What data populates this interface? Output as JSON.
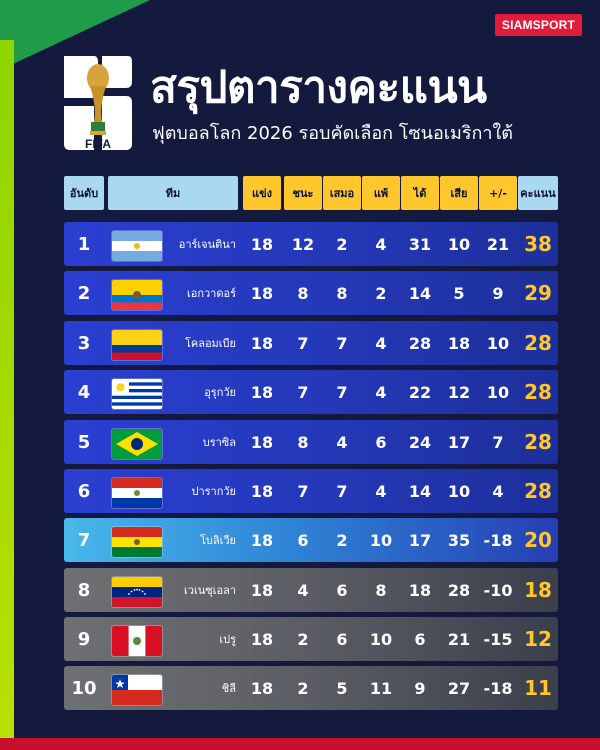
{
  "brand": "SIAMSPORT",
  "logo": {
    "text": "FIFA"
  },
  "header": {
    "title": "สรุปตารางคะแนน",
    "subtitle": "ฟุตบอลโลก 2026 รอบคัดเลือก โซนอเมริกาใต้"
  },
  "columns": {
    "rank": "อันดับ",
    "team": "ทีม",
    "played": "แข่ง",
    "won": "ชนะ",
    "drawn": "เสมอ",
    "lost": "แพ้",
    "gf": "ได้",
    "ga": "เสีย",
    "gd": "+/-",
    "pts": "คะแนน"
  },
  "colors": {
    "background": "#141a3d",
    "header_blue": "#aad7f2",
    "header_yellow": "#ffc72c",
    "row_blue": "#2a3fd1",
    "row_cyan": "#48b8ea",
    "row_gray": "#6e7073",
    "points": "#ffc72c",
    "brand": "#e31b3b"
  },
  "rows": [
    {
      "rank": "1",
      "team": "อาร์เจนตินา",
      "flag": "argentina-flag",
      "played": "18",
      "won": "12",
      "drawn": "2",
      "lost": "4",
      "gf": "31",
      "ga": "10",
      "gd": "21",
      "pts": "38",
      "status": "qualified"
    },
    {
      "rank": "2",
      "team": "เอกวาดอร์",
      "flag": "ecuador-flag",
      "played": "18",
      "won": "8",
      "drawn": "8",
      "lost": "2",
      "gf": "14",
      "ga": "5",
      "gd": "9",
      "pts": "29",
      "status": "qualified"
    },
    {
      "rank": "3",
      "team": "โคลอมเบีย",
      "flag": "colombia-flag",
      "played": "18",
      "won": "7",
      "drawn": "7",
      "lost": "4",
      "gf": "28",
      "ga": "18",
      "gd": "10",
      "pts": "28",
      "status": "qualified"
    },
    {
      "rank": "4",
      "team": "อุรุกวัย",
      "flag": "uruguay-flag",
      "played": "18",
      "won": "7",
      "drawn": "7",
      "lost": "4",
      "gf": "22",
      "ga": "12",
      "gd": "10",
      "pts": "28",
      "status": "qualified"
    },
    {
      "rank": "5",
      "team": "บราซิล",
      "flag": "brazil-flag",
      "played": "18",
      "won": "8",
      "drawn": "4",
      "lost": "6",
      "gf": "24",
      "ga": "17",
      "gd": "7",
      "pts": "28",
      "status": "qualified"
    },
    {
      "rank": "6",
      "team": "ปารากวัย",
      "flag": "paraguay-flag",
      "played": "18",
      "won": "7",
      "drawn": "7",
      "lost": "4",
      "gf": "14",
      "ga": "10",
      "gd": "4",
      "pts": "28",
      "status": "qualified"
    },
    {
      "rank": "7",
      "team": "โบลิเวีย",
      "flag": "bolivia-flag",
      "played": "18",
      "won": "6",
      "drawn": "2",
      "lost": "10",
      "gf": "17",
      "ga": "35",
      "gd": "-18",
      "pts": "20",
      "status": "playoff"
    },
    {
      "rank": "8",
      "team": "เวเนซุเอลา",
      "flag": "venezuela-flag",
      "played": "18",
      "won": "4",
      "drawn": "6",
      "lost": "8",
      "gf": "18",
      "ga": "28",
      "gd": "-10",
      "pts": "18",
      "status": "eliminated"
    },
    {
      "rank": "9",
      "team": "เปรู",
      "flag": "peru-flag",
      "played": "18",
      "won": "2",
      "drawn": "6",
      "lost": "10",
      "gf": "6",
      "ga": "21",
      "gd": "-15",
      "pts": "12",
      "status": "eliminated"
    },
    {
      "rank": "10",
      "team": "ชิลี",
      "flag": "chile-flag",
      "played": "18",
      "won": "2",
      "drawn": "5",
      "lost": "11",
      "gf": "9",
      "ga": "27",
      "gd": "-18",
      "pts": "11",
      "status": "eliminated"
    }
  ]
}
